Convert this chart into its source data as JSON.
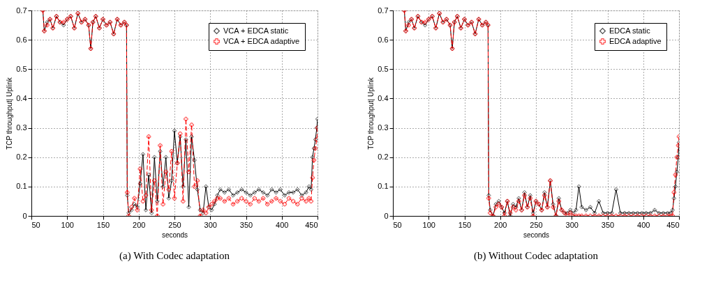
{
  "chart_data": [
    {
      "type": "line",
      "xlabel": "seconds",
      "ylabel": "TCP throughput| Uplink",
      "subtitle": "(a)  With Codec adaptation",
      "xlim": [
        50,
        450
      ],
      "xticks": [
        50,
        100,
        150,
        200,
        250,
        300,
        350,
        400,
        450
      ],
      "ylim": [
        0,
        0.7
      ],
      "yticks": [
        0,
        0.1,
        0.2,
        0.3,
        0.4,
        0.5,
        0.6,
        0.7
      ],
      "grid": true,
      "legend": "top right",
      "x": [
        66,
        68,
        72,
        76,
        80,
        85,
        90,
        95,
        100,
        105,
        110,
        115,
        120,
        125,
        130,
        133,
        136,
        140,
        145,
        150,
        155,
        160,
        165,
        170,
        175,
        180,
        183,
        184,
        186,
        190,
        194,
        198,
        202,
        206,
        210,
        214,
        218,
        222,
        226,
        230,
        234,
        238,
        242,
        246,
        250,
        254,
        258,
        262,
        266,
        270,
        274,
        278,
        282,
        286,
        290,
        294,
        298,
        302,
        306,
        310,
        314,
        320,
        326,
        332,
        338,
        344,
        350,
        356,
        362,
        368,
        374,
        380,
        386,
        392,
        398,
        404,
        410,
        416,
        422,
        428,
        434,
        438,
        441,
        443,
        445,
        447,
        449,
        450
      ],
      "series": [
        {
          "name": "VCA + EDCA static",
          "color": "#000000",
          "marker": "diamond",
          "line_style": "solid",
          "values": [
            0.7,
            0.63,
            0.66,
            0.67,
            0.64,
            0.68,
            0.66,
            0.65,
            0.67,
            0.68,
            0.64,
            0.69,
            0.66,
            0.67,
            0.65,
            0.57,
            0.66,
            0.68,
            0.64,
            0.67,
            0.65,
            0.66,
            0.62,
            0.67,
            0.65,
            0.66,
            0.65,
            0.07,
            0.01,
            0.02,
            0.04,
            0.03,
            0.11,
            0.21,
            0.02,
            0.14,
            0.01,
            0.2,
            0.05,
            0.22,
            0.1,
            0.2,
            0.06,
            0.12,
            0.29,
            0.18,
            0.27,
            0.1,
            0.26,
            0.03,
            0.27,
            0.19,
            0.09,
            0.02,
            0.01,
            0.1,
            0.03,
            0.02,
            0.04,
            0.07,
            0.09,
            0.08,
            0.09,
            0.07,
            0.08,
            0.09,
            0.08,
            0.07,
            0.08,
            0.09,
            0.08,
            0.07,
            0.09,
            0.08,
            0.09,
            0.07,
            0.08,
            0.08,
            0.09,
            0.07,
            0.08,
            0.1,
            0.09,
            0.2,
            0.23,
            0.26,
            0.3,
            0.33
          ]
        },
        {
          "name": "VCA + EDCA adaptive",
          "color": "#ff0000",
          "marker": "cross",
          "line_style": "dashed",
          "values": [
            0.7,
            0.63,
            0.65,
            0.67,
            0.64,
            0.68,
            0.66,
            0.66,
            0.67,
            0.68,
            0.64,
            0.69,
            0.66,
            0.67,
            0.65,
            0.57,
            0.66,
            0.68,
            0.64,
            0.67,
            0.65,
            0.66,
            0.62,
            0.67,
            0.65,
            0.66,
            0.65,
            0.08,
            0.0,
            0.03,
            0.06,
            0.02,
            0.16,
            0.05,
            0.07,
            0.27,
            0.02,
            0.12,
            0.0,
            0.24,
            0.04,
            0.15,
            0.09,
            0.22,
            0.06,
            0.18,
            0.28,
            0.05,
            0.33,
            0.15,
            0.31,
            0.1,
            0.12,
            0.0,
            0.02,
            0.01,
            0.03,
            0.04,
            0.05,
            0.06,
            0.06,
            0.05,
            0.06,
            0.04,
            0.05,
            0.06,
            0.05,
            0.04,
            0.06,
            0.05,
            0.06,
            0.04,
            0.05,
            0.06,
            0.05,
            0.04,
            0.06,
            0.05,
            0.04,
            0.06,
            0.05,
            0.06,
            0.05,
            0.13,
            0.19,
            0.23,
            0.26,
            0.3
          ]
        }
      ]
    },
    {
      "type": "line",
      "xlabel": "seconds",
      "ylabel": "TCP throughput| Uplink",
      "subtitle": "(b)  Without Codec adaptation",
      "xlim": [
        50,
        450
      ],
      "xticks": [
        50,
        100,
        150,
        200,
        250,
        300,
        350,
        400,
        450
      ],
      "ylim": [
        0,
        0.7
      ],
      "yticks": [
        0,
        0.1,
        0.2,
        0.3,
        0.4,
        0.5,
        0.6,
        0.7
      ],
      "grid": true,
      "legend": "top right",
      "x": [
        66,
        68,
        72,
        76,
        80,
        85,
        90,
        95,
        100,
        105,
        110,
        115,
        120,
        125,
        130,
        133,
        136,
        140,
        145,
        150,
        155,
        160,
        165,
        170,
        175,
        180,
        183,
        184,
        186,
        190,
        194,
        198,
        202,
        206,
        210,
        214,
        218,
        222,
        226,
        230,
        234,
        238,
        242,
        246,
        250,
        254,
        258,
        262,
        266,
        270,
        274,
        278,
        282,
        286,
        290,
        294,
        298,
        302,
        306,
        310,
        314,
        320,
        326,
        332,
        338,
        344,
        350,
        356,
        362,
        368,
        374,
        380,
        386,
        392,
        398,
        404,
        410,
        416,
        422,
        428,
        434,
        438,
        441,
        443,
        445,
        447,
        449,
        450
      ],
      "series": [
        {
          "name": "EDCA static",
          "color": "#000000",
          "marker": "diamond",
          "line_style": "solid",
          "values": [
            0.7,
            0.63,
            0.66,
            0.67,
            0.64,
            0.68,
            0.66,
            0.65,
            0.67,
            0.68,
            0.64,
            0.69,
            0.66,
            0.67,
            0.65,
            0.57,
            0.66,
            0.68,
            0.64,
            0.67,
            0.65,
            0.66,
            0.62,
            0.67,
            0.65,
            0.66,
            0.65,
            0.07,
            0.02,
            0.0,
            0.04,
            0.05,
            0.03,
            0.01,
            0.05,
            0.0,
            0.04,
            0.03,
            0.06,
            0.02,
            0.08,
            0.03,
            0.07,
            0.01,
            0.05,
            0.04,
            0.02,
            0.08,
            0.03,
            0.12,
            0.04,
            0.0,
            0.06,
            0.02,
            0.01,
            0.01,
            0.02,
            0.01,
            0.02,
            0.1,
            0.03,
            0.02,
            0.03,
            0.01,
            0.05,
            0.01,
            0.01,
            0.01,
            0.09,
            0.01,
            0.01,
            0.01,
            0.01,
            0.01,
            0.01,
            0.01,
            0.01,
            0.02,
            0.01,
            0.01,
            0.01,
            0.01,
            0.02,
            0.06,
            0.1,
            0.15,
            0.2,
            0.25
          ]
        },
        {
          "name": "EDCA adaptive",
          "color": "#ff0000",
          "marker": "cross",
          "line_style": "dashed",
          "values": [
            0.7,
            0.63,
            0.65,
            0.67,
            0.64,
            0.68,
            0.66,
            0.66,
            0.67,
            0.68,
            0.64,
            0.69,
            0.66,
            0.67,
            0.65,
            0.57,
            0.66,
            0.68,
            0.64,
            0.67,
            0.65,
            0.66,
            0.62,
            0.67,
            0.65,
            0.66,
            0.65,
            0.06,
            0.01,
            0.0,
            0.03,
            0.04,
            0.03,
            0.0,
            0.05,
            0.01,
            0.03,
            0.02,
            0.05,
            0.02,
            0.07,
            0.03,
            0.06,
            0.0,
            0.05,
            0.04,
            0.02,
            0.07,
            0.03,
            0.12,
            0.03,
            0.0,
            0.05,
            0.02,
            0.01,
            0.0,
            0.01,
            0.0,
            0.0,
            0.0,
            0.0,
            0.0,
            0.0,
            0.0,
            0.0,
            0.0,
            0.0,
            0.0,
            0.0,
            0.0,
            0.0,
            0.0,
            0.0,
            0.0,
            0.0,
            0.0,
            0.0,
            0.0,
            0.0,
            0.0,
            0.0,
            0.0,
            0.0,
            0.08,
            0.14,
            0.2,
            0.24,
            0.27
          ]
        }
      ]
    }
  ]
}
